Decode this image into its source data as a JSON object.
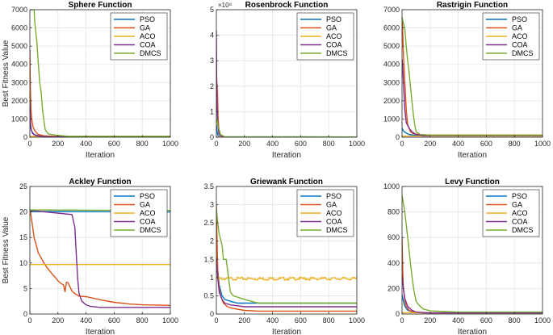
{
  "colors": {
    "PSO": "#0072BD",
    "GA": "#D95319",
    "ACO": "#EDB120",
    "COA": "#7E2F8E",
    "DMCS": "#77AC30"
  },
  "legend_entries": [
    "PSO",
    "GA",
    "ACO",
    "COA",
    "DMCS"
  ],
  "chart_data": [
    {
      "type": "line",
      "title": "Sphere Function",
      "xlabel": "Iteration",
      "ylabel": "Best Fitness Value",
      "xlim": [
        0,
        1000
      ],
      "ylim": [
        0,
        7000
      ],
      "xticks": [
        0,
        200,
        400,
        600,
        800,
        1000
      ],
      "yticks": [
        0,
        1000,
        2000,
        3000,
        4000,
        5000,
        6000,
        7000
      ],
      "ytick_labels": [
        "0",
        "1000",
        "2000",
        "3000",
        "4000",
        "5000",
        "6000",
        "7000"
      ],
      "multiplier": "",
      "legend_position": "top-right",
      "series": [
        {
          "name": "PSO",
          "x": [
            0,
            5,
            15,
            30,
            60,
            100,
            200,
            1000
          ],
          "y": [
            700,
            500,
            300,
            150,
            80,
            50,
            40,
            40
          ]
        },
        {
          "name": "GA",
          "x": [
            0,
            3,
            8,
            15,
            25,
            40,
            60,
            100,
            200,
            1000
          ],
          "y": [
            4800,
            2800,
            1500,
            900,
            500,
            300,
            150,
            80,
            50,
            50
          ]
        },
        {
          "name": "ACO",
          "x": [
            0,
            1000
          ],
          "y": [
            50,
            50
          ]
        },
        {
          "name": "COA",
          "x": [
            0,
            3,
            6,
            10,
            20,
            40,
            80,
            150,
            1000
          ],
          "y": [
            1900,
            1200,
            700,
            400,
            200,
            100,
            50,
            30,
            30
          ]
        },
        {
          "name": "DMCS",
          "x": [
            0,
            30,
            35,
            50,
            60,
            70,
            80,
            90,
            100,
            110,
            130,
            150,
            200,
            280,
            1000
          ],
          "y": [
            7000,
            7000,
            6300,
            5200,
            4100,
            3000,
            2500,
            1500,
            900,
            400,
            200,
            150,
            100,
            50,
            50
          ]
        }
      ]
    },
    {
      "type": "line",
      "title": "Rosenbrock Function",
      "xlabel": "Iteration",
      "ylabel": "",
      "xlim": [
        0,
        1000
      ],
      "ylim": [
        0,
        5
      ],
      "xticks": [
        0,
        200,
        400,
        600,
        800,
        1000
      ],
      "yticks": [
        0,
        1,
        2,
        3,
        4,
        5
      ],
      "ytick_labels": [
        "0",
        "1",
        "2",
        "3",
        "4",
        "5"
      ],
      "multiplier": "×10⁸",
      "legend_position": "top-right",
      "series": [
        {
          "name": "PSO",
          "x": [
            0,
            3,
            10,
            20,
            1000
          ],
          "y": [
            0.5,
            0.3,
            0.1,
            0.02,
            0.01
          ]
        },
        {
          "name": "GA",
          "x": [
            0,
            3,
            8,
            12,
            18,
            25,
            35,
            60,
            1000
          ],
          "y": [
            1.0,
            2.2,
            1.8,
            0.8,
            0.3,
            0.1,
            0.03,
            0.01,
            0.01
          ]
        },
        {
          "name": "ACO",
          "x": [
            0,
            1000
          ],
          "y": [
            0.01,
            0.01
          ]
        },
        {
          "name": "COA",
          "x": [
            0,
            2,
            5,
            10,
            18,
            30,
            50,
            1000
          ],
          "y": [
            4.2,
            2.5,
            1.2,
            0.5,
            0.15,
            0.05,
            0.01,
            0.01
          ]
        },
        {
          "name": "DMCS",
          "x": [
            0,
            15,
            30,
            60,
            1000
          ],
          "y": [
            0.8,
            0.4,
            0.1,
            0.02,
            0.01
          ]
        }
      ]
    },
    {
      "type": "line",
      "title": "Rastrigin Function",
      "xlabel": "Iteration",
      "ylabel": "",
      "xlim": [
        0,
        1000
      ],
      "ylim": [
        0,
        7000
      ],
      "xticks": [
        0,
        200,
        400,
        600,
        800,
        1000
      ],
      "yticks": [
        0,
        1000,
        2000,
        3000,
        4000,
        5000,
        6000,
        7000
      ],
      "ytick_labels": [
        "0",
        "1000",
        "2000",
        "3000",
        "4000",
        "5000",
        "6000",
        "7000"
      ],
      "multiplier": "",
      "legend_position": "top-right",
      "series": [
        {
          "name": "PSO",
          "x": [
            0,
            10,
            25,
            50,
            100,
            200,
            1000
          ],
          "y": [
            500,
            350,
            250,
            150,
            100,
            80,
            80
          ]
        },
        {
          "name": "GA",
          "x": [
            0,
            5,
            10,
            20,
            30,
            40,
            60,
            80,
            120,
            200,
            1000
          ],
          "y": [
            6500,
            5800,
            4500,
            3000,
            1500,
            700,
            300,
            200,
            150,
            120,
            120
          ]
        },
        {
          "name": "ACO",
          "x": [
            0,
            1000
          ],
          "y": [
            60,
            60
          ]
        },
        {
          "name": "COA",
          "x": [
            0,
            5,
            10,
            20,
            30,
            50,
            70,
            100,
            150,
            1000
          ],
          "y": [
            4300,
            3800,
            3000,
            1500,
            800,
            500,
            300,
            150,
            80,
            80
          ]
        },
        {
          "name": "DMCS",
          "x": [
            0,
            20,
            30,
            40,
            50,
            60,
            70,
            80,
            90,
            100,
            130,
            200,
            1000
          ],
          "y": [
            6600,
            5900,
            5000,
            4200,
            3600,
            2800,
            2000,
            1300,
            700,
            300,
            150,
            100,
            100
          ]
        }
      ]
    },
    {
      "type": "line",
      "title": "Ackley Function",
      "xlabel": "Iteration",
      "ylabel": "Best Fitness Value",
      "xlim": [
        0,
        1000
      ],
      "ylim": [
        0,
        25
      ],
      "xticks": [
        0,
        200,
        400,
        600,
        800,
        1000
      ],
      "yticks": [
        0,
        5,
        10,
        15,
        20,
        25
      ],
      "ytick_labels": [
        "0",
        "5",
        "10",
        "15",
        "20",
        "25"
      ],
      "multiplier": "",
      "legend_position": "top-right",
      "series": [
        {
          "name": "PSO",
          "x": [
            0,
            1000
          ],
          "y": [
            20.1,
            20.0
          ]
        },
        {
          "name": "GA",
          "x": [
            0,
            10,
            20,
            30,
            40,
            50,
            60,
            70,
            80,
            90,
            100,
            120,
            140,
            160,
            180,
            200,
            220,
            240,
            250,
            260,
            270,
            300,
            320,
            350,
            400,
            500,
            600,
            700,
            800,
            1000
          ],
          "y": [
            20.5,
            19,
            17,
            15,
            14,
            13,
            12,
            11.5,
            11,
            10.5,
            10,
            9.2,
            8.5,
            7.8,
            7.2,
            6.5,
            6,
            5.7,
            4.3,
            6.2,
            6.2,
            4.5,
            4,
            3.5,
            3.4,
            2.8,
            2.3,
            2,
            1.8,
            1.7
          ]
        },
        {
          "name": "ACO",
          "x": [
            0,
            1000
          ],
          "y": [
            9.7,
            9.7
          ]
        },
        {
          "name": "COA",
          "x": [
            0,
            300,
            320,
            330,
            340,
            350,
            370,
            400,
            430,
            500,
            1000
          ],
          "y": [
            20.3,
            19.5,
            17,
            12,
            7,
            4,
            2.5,
            1.8,
            1.5,
            1.3,
            1.3
          ]
        },
        {
          "name": "DMCS",
          "x": [
            0,
            1000
          ],
          "y": [
            20.4,
            20.3
          ]
        }
      ]
    },
    {
      "type": "line",
      "title": "Griewank Function",
      "xlabel": "Iteration",
      "ylabel": "",
      "xlim": [
        0,
        1000
      ],
      "ylim": [
        0,
        3.5
      ],
      "xticks": [
        0,
        200,
        400,
        600,
        800,
        1000
      ],
      "yticks": [
        0,
        0.5,
        1,
        1.5,
        2,
        2.5,
        3,
        3.5
      ],
      "ytick_labels": [
        "0",
        "0.5",
        "1",
        "1.5",
        "2",
        "2.5",
        "3",
        "3.5"
      ],
      "multiplier": "",
      "legend_position": "top-right",
      "series": [
        {
          "name": "PSO",
          "x": [
            0,
            10,
            20,
            40,
            60,
            100,
            150,
            1000
          ],
          "y": [
            1.6,
            1.2,
            0.8,
            0.5,
            0.4,
            0.35,
            0.3,
            0.3
          ]
        },
        {
          "name": "GA",
          "x": [
            0,
            5,
            10,
            20,
            30,
            50,
            80,
            120,
            200,
            300,
            1000
          ],
          "y": [
            3.0,
            2.0,
            1.2,
            0.7,
            0.5,
            0.3,
            0.2,
            0.15,
            0.1,
            0.08,
            0.08
          ]
        },
        {
          "name": "ACO",
          "x": [
            0,
            1000
          ],
          "y": [
            0.97,
            0.97
          ]
        },
        {
          "name": "COA",
          "x": [
            0,
            10,
            20,
            40,
            60,
            100,
            200,
            1000
          ],
          "y": [
            1.5,
            1.0,
            0.6,
            0.4,
            0.3,
            0.25,
            0.2,
            0.2
          ]
        },
        {
          "name": "DMCS",
          "x": [
            0,
            10,
            20,
            40,
            50,
            70,
            100,
            120,
            200,
            300,
            1000
          ],
          "y": [
            2.9,
            2.5,
            2.2,
            1.9,
            1.5,
            1.5,
            0.6,
            0.5,
            0.4,
            0.3,
            0.3
          ]
        }
      ]
    },
    {
      "type": "line",
      "title": "Levy Function",
      "xlabel": "Iteration",
      "ylabel": "",
      "xlim": [
        0,
        1000
      ],
      "ylim": [
        0,
        1000
      ],
      "xticks": [
        0,
        200,
        400,
        600,
        800,
        1000
      ],
      "yticks": [
        0,
        200,
        400,
        600,
        800,
        1000
      ],
      "ytick_labels": [
        "0",
        "200",
        "400",
        "600",
        "800",
        "1000"
      ],
      "multiplier": "",
      "legend_position": "top-right",
      "series": [
        {
          "name": "PSO",
          "x": [
            0,
            10,
            20,
            40,
            80,
            150,
            1000
          ],
          "y": [
            150,
            100,
            60,
            30,
            15,
            10,
            10
          ]
        },
        {
          "name": "GA",
          "x": [
            0,
            5,
            10,
            20,
            30,
            50,
            80,
            150,
            1000
          ],
          "y": [
            600,
            350,
            200,
            100,
            60,
            30,
            15,
            8,
            8
          ]
        },
        {
          "name": "ACO",
          "x": [
            0,
            1000
          ],
          "y": [
            10,
            10
          ]
        },
        {
          "name": "COA",
          "x": [
            0,
            10,
            20,
            40,
            70,
            100,
            200,
            1000
          ],
          "y": [
            300,
            200,
            120,
            60,
            30,
            15,
            8,
            8
          ]
        },
        {
          "name": "DMCS",
          "x": [
            0,
            20,
            30,
            40,
            50,
            60,
            70,
            80,
            90,
            100,
            120,
            150,
            200,
            400,
            1000
          ],
          "y": [
            930,
            800,
            700,
            600,
            500,
            400,
            300,
            220,
            150,
            100,
            70,
            40,
            25,
            15,
            15
          ]
        }
      ]
    }
  ]
}
